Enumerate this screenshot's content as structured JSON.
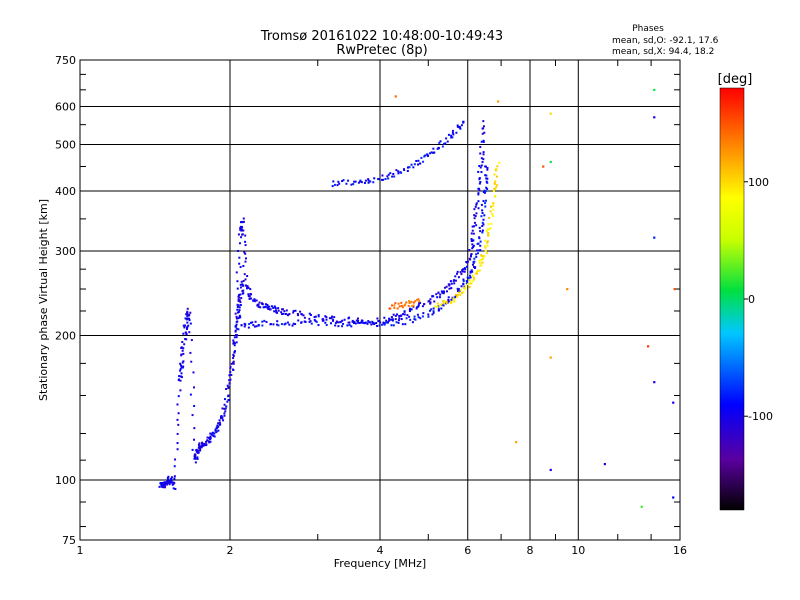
{
  "header": {
    "title": "Tromsø 20161022 10:48:00-10:49:43",
    "subtitle": "RwPretec (8p)",
    "phases_heading": "Phases",
    "phases_o": "mean, sd,O: -92.1, 17.6",
    "phases_x": "mean, sd,X:  94.4, 18.2"
  },
  "chart_data": {
    "type": "scatter",
    "xlabel": "Frequency [MHz]",
    "ylabel": "Stationary phase Virtual Height [km]",
    "x_scale": "log",
    "y_scale": "log",
    "xlim": [
      1,
      16
    ],
    "ylim": [
      75,
      750
    ],
    "grid": true,
    "x_ticks": [
      {
        "value": 1,
        "label": "1"
      },
      {
        "value": 2,
        "label": "2"
      },
      {
        "value": 4,
        "label": "4"
      },
      {
        "value": 6,
        "label": "6"
      },
      {
        "value": 8,
        "label": "8"
      },
      {
        "value": 10,
        "label": "10"
      },
      {
        "value": 16,
        "label": "16"
      }
    ],
    "y_ticks": [
      {
        "value": 75,
        "label": "75"
      },
      {
        "value": 100,
        "label": "100"
      },
      {
        "value": 200,
        "label": "200"
      },
      {
        "value": 300,
        "label": "300"
      },
      {
        "value": 400,
        "label": "400"
      },
      {
        "value": 500,
        "label": "500"
      },
      {
        "value": 600,
        "label": "600"
      },
      {
        "value": 750,
        "label": "750"
      }
    ],
    "colorbar": {
      "label": "[deg]",
      "range": [
        -180,
        180
      ],
      "ticks": [
        {
          "value": 100,
          "label": "100"
        },
        {
          "value": 0,
          "label": "0"
        },
        {
          "value": -100,
          "label": "-100"
        }
      ]
    },
    "traces": [
      {
        "points": [
          [
            1.45,
            98
          ],
          [
            1.47,
            97
          ],
          [
            1.5,
            99
          ],
          [
            1.52,
            101
          ],
          [
            1.55,
            96
          ],
          [
            1.58,
            160
          ],
          [
            1.6,
            175
          ],
          [
            1.62,
            200
          ],
          [
            1.64,
            215
          ],
          [
            1.66,
            225
          ],
          [
            1.7,
            110
          ],
          [
            1.72,
            115
          ],
          [
            1.75,
            118
          ],
          [
            1.8,
            120
          ],
          [
            1.85,
            125
          ],
          [
            1.9,
            130
          ],
          [
            1.95,
            140
          ],
          [
            2.0,
            160
          ],
          [
            2.03,
            180
          ],
          [
            2.06,
            200
          ],
          [
            2.08,
            220
          ],
          [
            2.1,
            240
          ],
          [
            2.12,
            260
          ]
        ],
        "phase": -100
      },
      {
        "points": [
          [
            2.05,
            210
          ],
          [
            2.1,
            320
          ],
          [
            2.12,
            350
          ],
          [
            2.15,
            260
          ],
          [
            2.2,
            240
          ],
          [
            2.3,
            232
          ],
          [
            2.4,
            228
          ],
          [
            2.5,
            225
          ],
          [
            2.7,
            222
          ],
          [
            3.0,
            218
          ],
          [
            3.3,
            216
          ],
          [
            3.6,
            214
          ],
          [
            4.0,
            214
          ],
          [
            4.3,
            218
          ],
          [
            4.6,
            225
          ],
          [
            5.0,
            235
          ],
          [
            5.3,
            245
          ],
          [
            5.6,
            258
          ],
          [
            5.9,
            275
          ],
          [
            6.1,
            300
          ],
          [
            6.2,
            340
          ],
          [
            6.3,
            400
          ],
          [
            6.4,
            470
          ],
          [
            6.45,
            560
          ]
        ],
        "phase": -100
      },
      {
        "points": [
          [
            2.1,
            210
          ],
          [
            2.3,
            212
          ],
          [
            2.6,
            212
          ],
          [
            3.0,
            212
          ],
          [
            3.5,
            212
          ],
          [
            4.0,
            212
          ],
          [
            4.5,
            214
          ],
          [
            5.0,
            222
          ],
          [
            5.4,
            232
          ],
          [
            5.8,
            250
          ],
          [
            6.1,
            270
          ],
          [
            6.3,
            300
          ],
          [
            6.4,
            340
          ],
          [
            6.5,
            400
          ],
          [
            6.55,
            460
          ]
        ],
        "phase": -90
      },
      {
        "points": [
          [
            3.2,
            415
          ],
          [
            3.6,
            418
          ],
          [
            4.0,
            425
          ],
          [
            4.4,
            440
          ],
          [
            4.8,
            460
          ],
          [
            5.2,
            490
          ],
          [
            5.6,
            530
          ],
          [
            5.9,
            560
          ]
        ],
        "phase": -90
      },
      {
        "points": [
          [
            4.2,
            230
          ],
          [
            4.5,
            232
          ],
          [
            4.8,
            235
          ]
        ],
        "phase": 140
      },
      {
        "points": [
          [
            5.2,
            230
          ],
          [
            5.6,
            238
          ],
          [
            6.0,
            252
          ],
          [
            6.3,
            275
          ],
          [
            6.5,
            300
          ],
          [
            6.65,
            340
          ],
          [
            6.8,
            400
          ],
          [
            6.9,
            460
          ]
        ],
        "phase": 95
      }
    ],
    "scatter": [
      {
        "x": 4.3,
        "y": 630,
        "phase": 140
      },
      {
        "x": 6.9,
        "y": 615,
        "phase": 120
      },
      {
        "x": 7.5,
        "y": 120,
        "phase": 120
      },
      {
        "x": 8.5,
        "y": 450,
        "phase": 150
      },
      {
        "x": 8.8,
        "y": 580,
        "phase": 100
      },
      {
        "x": 8.8,
        "y": 460,
        "phase": 10
      },
      {
        "x": 8.8,
        "y": 180,
        "phase": 120
      },
      {
        "x": 8.8,
        "y": 105,
        "phase": -100
      },
      {
        "x": 9.5,
        "y": 250,
        "phase": 130
      },
      {
        "x": 11.3,
        "y": 108,
        "phase": -100
      },
      {
        "x": 13.4,
        "y": 88,
        "phase": 20
      },
      {
        "x": 13.8,
        "y": 190,
        "phase": 160
      },
      {
        "x": 14.2,
        "y": 570,
        "phase": -100
      },
      {
        "x": 14.2,
        "y": 320,
        "phase": -80
      },
      {
        "x": 14.2,
        "y": 160,
        "phase": -100
      },
      {
        "x": 14.2,
        "y": 650,
        "phase": 10
      },
      {
        "x": 15.5,
        "y": 145,
        "phase": -100
      },
      {
        "x": 15.5,
        "y": 92,
        "phase": -90
      },
      {
        "x": 15.6,
        "y": 250,
        "phase": 150
      }
    ]
  }
}
